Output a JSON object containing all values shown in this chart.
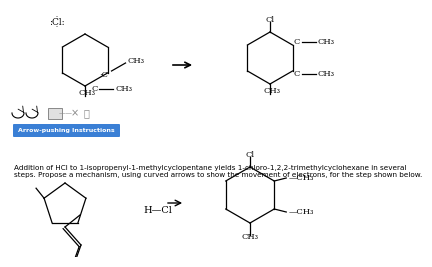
{
  "title_text": "Addition of HCl to 1-isopropenyl-1-methylcyclopentane yields 1-chloro-1,2,2-trimethylcyclohexane in several\nsteps. Propose a mechanism, using curved arrows to show the movement of electrons, for the step shown below.",
  "button_text": "Arrow-pushing Instructions",
  "button_color": "#3a7fd5",
  "button_text_color": "white",
  "main_text_fontsize": 5.2,
  "label_fontsize": 6.0,
  "small_label_fontsize": 5.5
}
